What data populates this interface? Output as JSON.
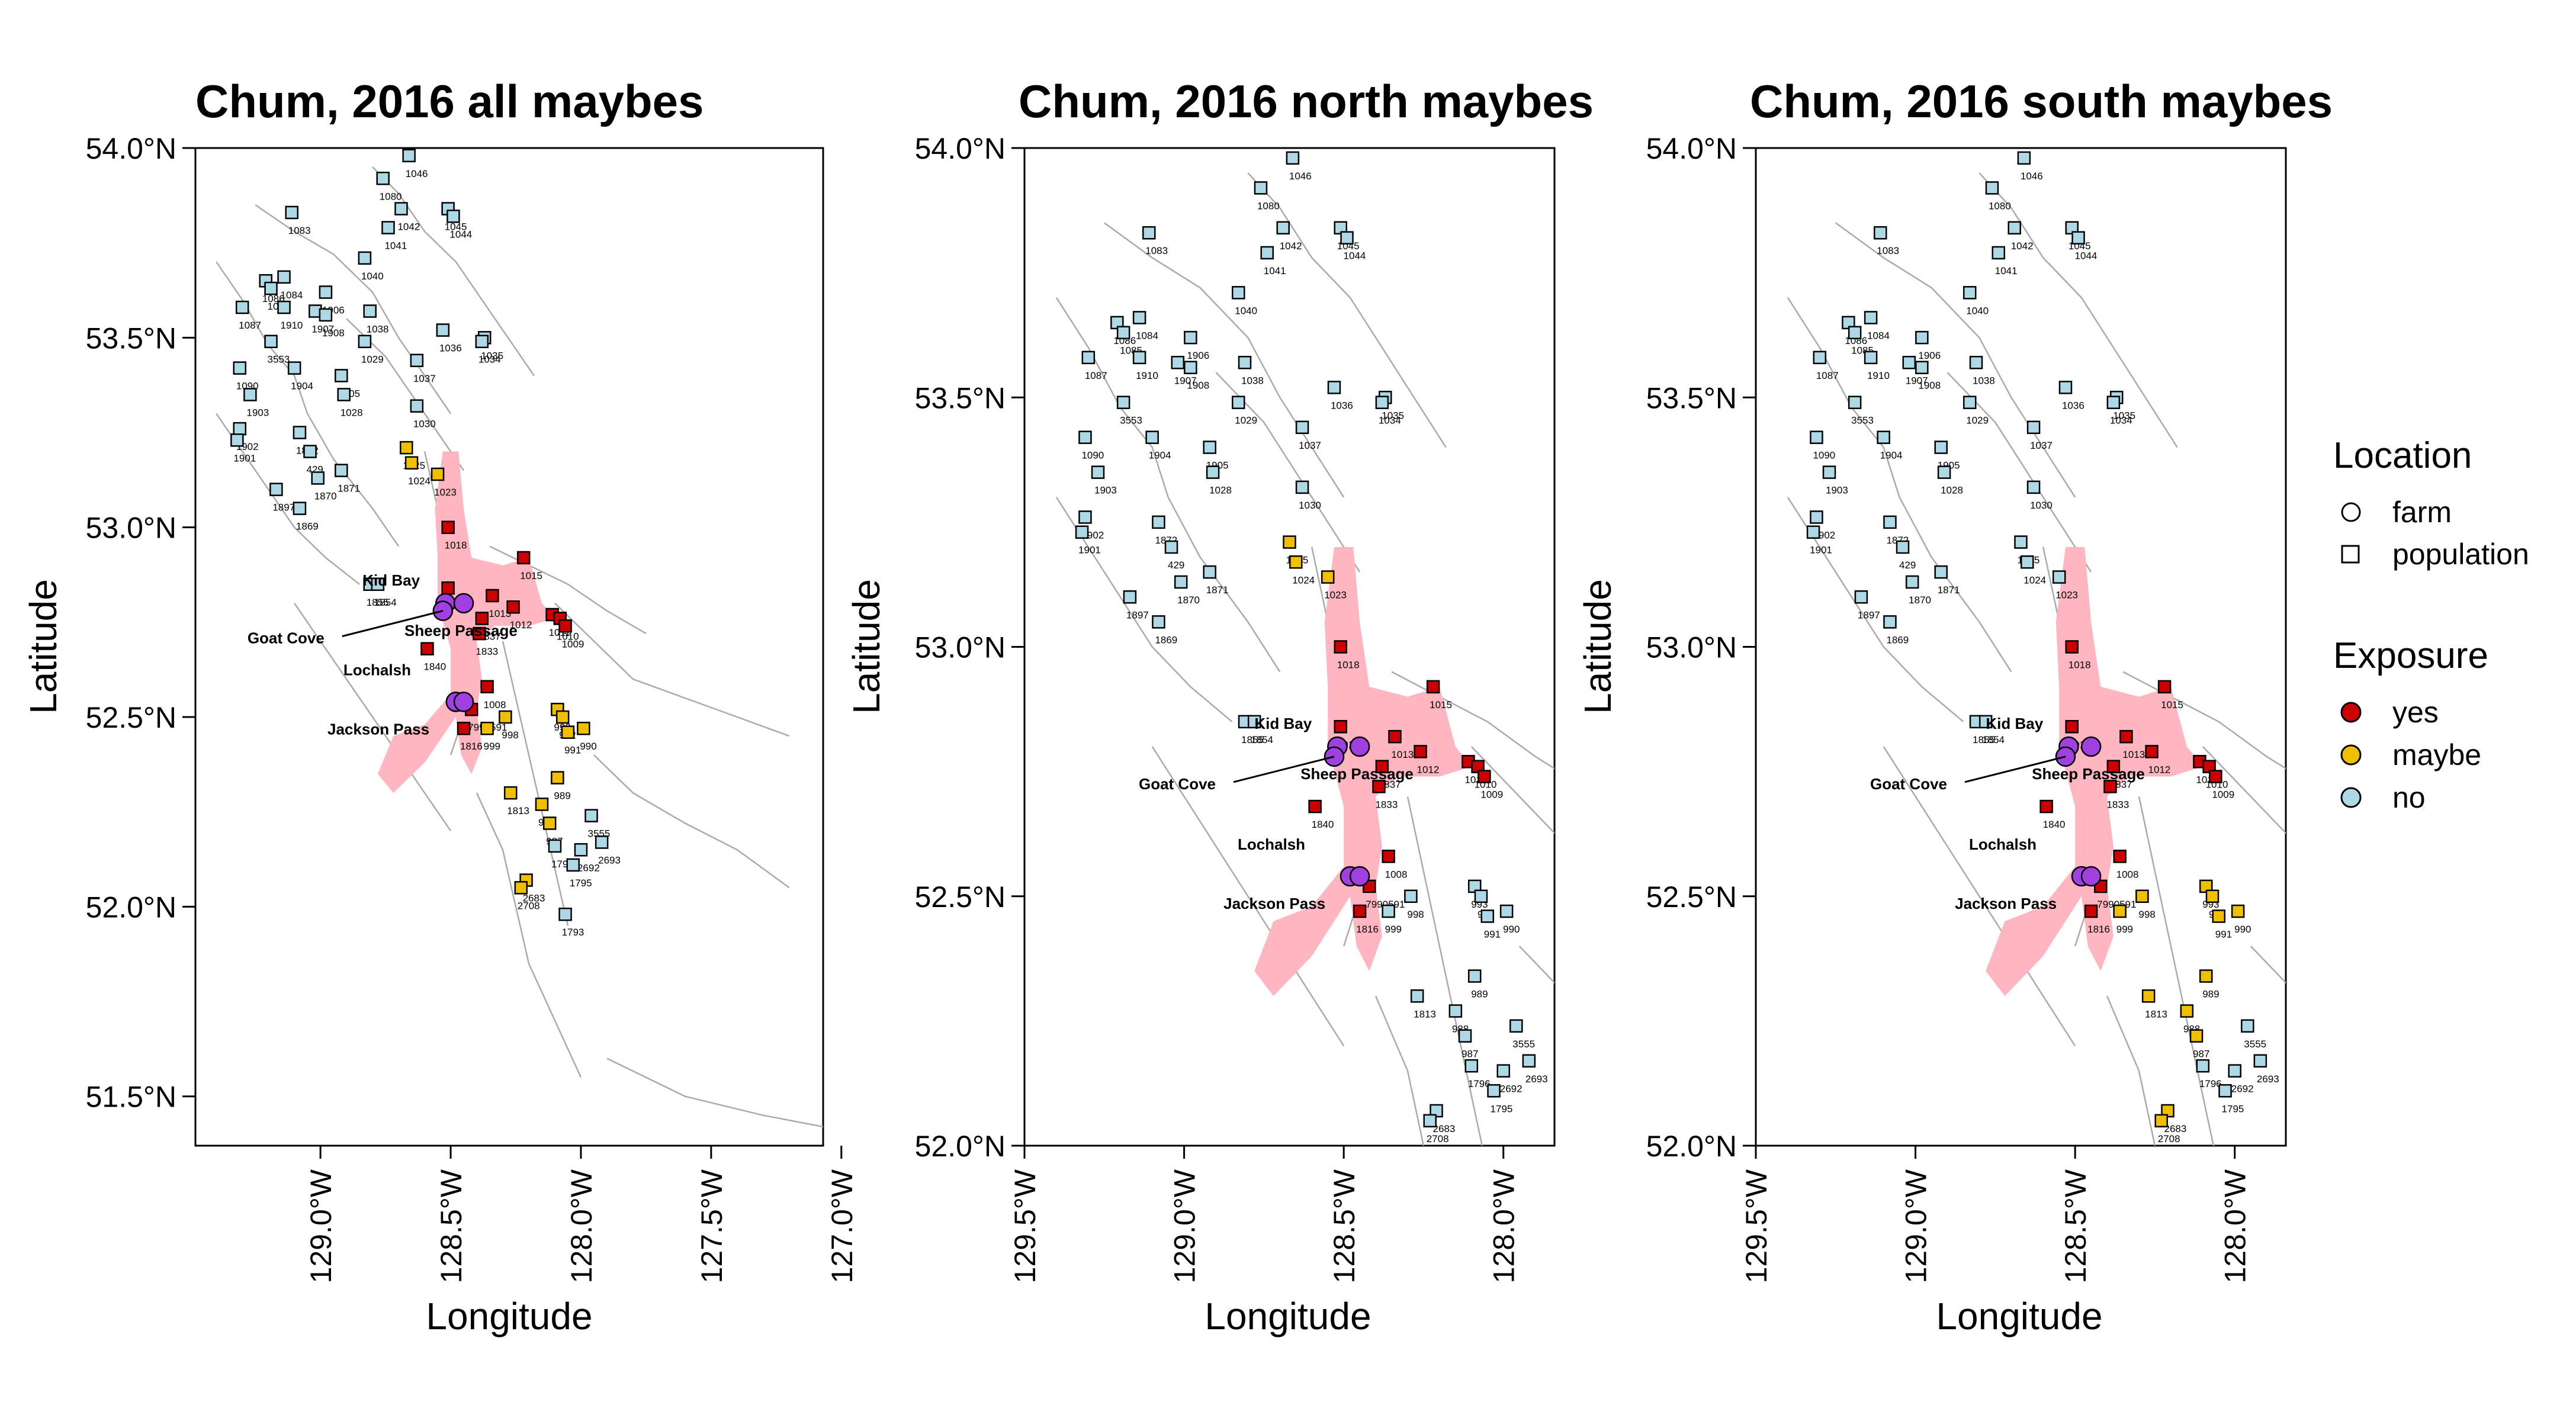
{
  "axis_labels": {
    "x": "Longitude",
    "y": "Latitude"
  },
  "colors": {
    "yes": "#cc0000",
    "maybe": "#f0c000",
    "no": "#add8e6",
    "farm": "#a040e0",
    "coast": "#aaaaaa",
    "route": "#ffb6c1"
  },
  "legend": {
    "location_title": "Location",
    "location_items": [
      {
        "label": "farm",
        "shape": "circle"
      },
      {
        "label": "population",
        "shape": "square"
      }
    ],
    "exposure_title": "Exposure",
    "exposure_items": [
      {
        "label": "yes",
        "key": "yes"
      },
      {
        "label": "maybe",
        "key": "maybe"
      },
      {
        "label": "no",
        "key": "no"
      }
    ]
  },
  "farm_labels": [
    "Kid Bay",
    "Goat Cove",
    "Sheep Passage",
    "Lochalsh",
    "Jackson Pass"
  ],
  "panels": [
    {
      "title": "Chum, 2016 all maybes",
      "lat_ticks": [
        "51.5°N",
        "52.0°N",
        "52.5°N",
        "53.0°N",
        "53.5°N",
        "54.0°N"
      ],
      "lon_ticks": [
        "129.0°W",
        "128.5°W",
        "128.0°W",
        "127.5°W",
        "127.0°W"
      ]
    },
    {
      "title": "Chum, 2016 north maybes",
      "lat_ticks": [
        "52.0°N",
        "52.5°N",
        "53.0°N",
        "53.5°N",
        "54.0°N"
      ],
      "lon_ticks": [
        "129.5°W",
        "129.0°W",
        "128.5°W",
        "128.0°W"
      ]
    },
    {
      "title": "Chum, 2016 south maybes",
      "lat_ticks": [
        "52.0°N",
        "52.5°N",
        "53.0°N",
        "53.5°N",
        "54.0°N"
      ],
      "lon_ticks": [
        "129.5°W",
        "129.0°W",
        "128.5°W",
        "128.0°W"
      ]
    }
  ],
  "farms": [
    {
      "name": "Kid Bay",
      "lon": -128.52,
      "lat": 52.8
    },
    {
      "name": "Goat Cove",
      "lon": -128.53,
      "lat": 52.78
    },
    {
      "name": "Sheep Passage",
      "lon": -128.45,
      "lat": 52.8
    },
    {
      "name": "Lochalsh",
      "lon": -128.48,
      "lat": 52.54
    },
    {
      "name": "Jackson Pass",
      "lon": -128.45,
      "lat": 52.54
    }
  ],
  "populations": [
    {
      "id": "1046",
      "lon": -128.66,
      "lat": 53.98,
      "north": "no",
      "south": "no",
      "all": "no"
    },
    {
      "id": "1080",
      "lon": -128.76,
      "lat": 53.92,
      "north": "no",
      "south": "no",
      "all": "no"
    },
    {
      "id": "1045",
      "lon": -128.51,
      "lat": 53.84,
      "north": "no",
      "south": "no",
      "all": "no"
    },
    {
      "id": "1044",
      "lon": -128.49,
      "lat": 53.82,
      "north": "no",
      "south": "no",
      "all": "no"
    },
    {
      "id": "1042",
      "lon": -128.69,
      "lat": 53.84,
      "north": "no",
      "south": "no",
      "all": "no"
    },
    {
      "id": "1083",
      "lon": -129.11,
      "lat": 53.83,
      "north": "no",
      "south": "no",
      "all": "no"
    },
    {
      "id": "1041",
      "lon": -128.74,
      "lat": 53.79,
      "north": "no",
      "south": "no",
      "all": "no"
    },
    {
      "id": "1906",
      "lon": -128.98,
      "lat": 53.62,
      "north": "no",
      "south": "no",
      "all": "no"
    },
    {
      "id": "1040",
      "lon": -128.83,
      "lat": 53.71,
      "north": "no",
      "south": "no",
      "all": "no"
    },
    {
      "id": "1086",
      "lon": -129.21,
      "lat": 53.65,
      "north": "no",
      "south": "no",
      "all": "no"
    },
    {
      "id": "1084",
      "lon": -129.14,
      "lat": 53.66,
      "north": "no",
      "south": "no",
      "all": "no"
    },
    {
      "id": "1085",
      "lon": -129.19,
      "lat": 53.63,
      "north": "no",
      "south": "no",
      "all": "no"
    },
    {
      "id": "1907",
      "lon": -129.02,
      "lat": 53.57,
      "north": "no",
      "south": "no",
      "all": "no"
    },
    {
      "id": "1087",
      "lon": -129.3,
      "lat": 53.58,
      "north": "no",
      "south": "no",
      "all": "no"
    },
    {
      "id": "1910",
      "lon": -129.14,
      "lat": 53.58,
      "north": "no",
      "south": "no",
      "all": "no"
    },
    {
      "id": "1908",
      "lon": -128.98,
      "lat": 53.56,
      "north": "no",
      "south": "no",
      "all": "no"
    },
    {
      "id": "1038",
      "lon": -128.81,
      "lat": 53.57,
      "north": "no",
      "south": "no",
      "all": "no"
    },
    {
      "id": "1029",
      "lon": -128.83,
      "lat": 53.49,
      "north": "no",
      "south": "no",
      "all": "no"
    },
    {
      "id": "1036",
      "lon": -128.53,
      "lat": 53.52,
      "north": "no",
      "south": "no",
      "all": "no"
    },
    {
      "id": "1035",
      "lon": -128.37,
      "lat": 53.5,
      "north": "no",
      "south": "no",
      "all": "no"
    },
    {
      "id": "1034",
      "lon": -128.38,
      "lat": 53.49,
      "north": "no",
      "south": "no",
      "all": "no"
    },
    {
      "id": "1037",
      "lon": -128.63,
      "lat": 53.44,
      "north": "no",
      "south": "no",
      "all": "no"
    },
    {
      "id": "3553",
      "lon": -129.19,
      "lat": 53.49,
      "north": "no",
      "south": "no",
      "all": "no"
    },
    {
      "id": "1090",
      "lon": -129.31,
      "lat": 53.42,
      "north": "no",
      "south": "no",
      "all": "no"
    },
    {
      "id": "1904",
      "lon": -129.1,
      "lat": 53.42,
      "north": "no",
      "south": "no",
      "all": "no"
    },
    {
      "id": "1905",
      "lon": -128.92,
      "lat": 53.4,
      "north": "no",
      "south": "no",
      "all": "no"
    },
    {
      "id": "1903",
      "lon": -129.27,
      "lat": 53.35,
      "north": "no",
      "south": "no",
      "all": "no"
    },
    {
      "id": "1028",
      "lon": -128.91,
      "lat": 53.35,
      "north": "no",
      "south": "no",
      "all": "no"
    },
    {
      "id": "1030",
      "lon": -128.63,
      "lat": 53.32,
      "north": "no",
      "south": "no",
      "all": "no"
    },
    {
      "id": "1902",
      "lon": -129.31,
      "lat": 53.26,
      "north": "no",
      "south": "no",
      "all": "no"
    },
    {
      "id": "1901",
      "lon": -129.32,
      "lat": 53.23,
      "north": "no",
      "south": "no",
      "all": "no"
    },
    {
      "id": "1872",
      "lon": -129.08,
      "lat": 53.25,
      "north": "no",
      "south": "no",
      "all": "no"
    },
    {
      "id": "429",
      "lon": -129.04,
      "lat": 53.2,
      "north": "no",
      "south": "no",
      "all": "no"
    },
    {
      "id": "1871",
      "lon": -128.92,
      "lat": 53.15,
      "north": "no",
      "south": "no",
      "all": "no"
    },
    {
      "id": "1870",
      "lon": -129.01,
      "lat": 53.13,
      "north": "no",
      "south": "no",
      "all": "no"
    },
    {
      "id": "1897",
      "lon": -129.17,
      "lat": 53.1,
      "north": "no",
      "south": "no",
      "all": "no"
    },
    {
      "id": "1869",
      "lon": -129.08,
      "lat": 53.05,
      "north": "no",
      "south": "no",
      "all": "no"
    },
    {
      "id": "1855",
      "lon": -128.81,
      "lat": 52.85,
      "north": "no",
      "south": "no",
      "all": "no"
    },
    {
      "id": "1854",
      "lon": -128.78,
      "lat": 52.85,
      "north": "no",
      "south": "no",
      "all": "no"
    },
    {
      "id": "1025",
      "lon": -128.67,
      "lat": 53.21,
      "north": "maybe",
      "south": "no",
      "all": "maybe"
    },
    {
      "id": "1024",
      "lon": -128.65,
      "lat": 53.17,
      "north": "maybe",
      "south": "no",
      "all": "maybe"
    },
    {
      "id": "1023",
      "lon": -128.55,
      "lat": 53.14,
      "north": "maybe",
      "south": "no",
      "all": "maybe"
    },
    {
      "id": "1018",
      "lon": -128.51,
      "lat": 53.0,
      "north": "yes",
      "south": "yes",
      "all": "yes"
    },
    {
      "id": "1015",
      "lon": -128.22,
      "lat": 52.92,
      "north": "yes",
      "south": "yes",
      "all": "yes"
    },
    {
      "id": "1017",
      "lon": -128.51,
      "lat": 52.84,
      "north": "yes",
      "south": "yes",
      "all": "yes"
    },
    {
      "id": "1013",
      "lon": -128.34,
      "lat": 52.82,
      "north": "yes",
      "south": "yes",
      "all": "yes"
    },
    {
      "id": "1012",
      "lon": -128.26,
      "lat": 52.79,
      "north": "yes",
      "south": "yes",
      "all": "yes"
    },
    {
      "id": "1011",
      "lon": -128.11,
      "lat": 52.77,
      "north": "yes",
      "south": "yes",
      "all": "yes"
    },
    {
      "id": "1010",
      "lon": -128.08,
      "lat": 52.76,
      "north": "yes",
      "south": "yes",
      "all": "yes"
    },
    {
      "id": "1009",
      "lon": -128.06,
      "lat": 52.74,
      "north": "yes",
      "south": "yes",
      "all": "yes"
    },
    {
      "id": "1837",
      "lon": -128.38,
      "lat": 52.76,
      "north": "yes",
      "south": "yes",
      "all": "yes"
    },
    {
      "id": "1833",
      "lon": -128.39,
      "lat": 52.72,
      "north": "yes",
      "south": "yes",
      "all": "yes"
    },
    {
      "id": "1840",
      "lon": -128.59,
      "lat": 52.68,
      "north": "yes",
      "south": "yes",
      "all": "yes"
    },
    {
      "id": "1008",
      "lon": -128.36,
      "lat": 52.58,
      "north": "yes",
      "south": "yes",
      "all": "yes"
    },
    {
      "id": "7990591",
      "lon": -128.42,
      "lat": 52.52,
      "north": "yes",
      "south": "yes",
      "all": "yes"
    },
    {
      "id": "1816",
      "lon": -128.45,
      "lat": 52.47,
      "north": "yes",
      "south": "yes",
      "all": "yes"
    },
    {
      "id": "999",
      "lon": -128.36,
      "lat": 52.47,
      "north": "no",
      "south": "maybe",
      "all": "maybe"
    },
    {
      "id": "998",
      "lon": -128.29,
      "lat": 52.5,
      "north": "no",
      "south": "maybe",
      "all": "maybe"
    },
    {
      "id": "993",
      "lon": -128.09,
      "lat": 52.52,
      "north": "no",
      "south": "maybe",
      "all": "maybe"
    },
    {
      "id": "992",
      "lon": -128.07,
      "lat": 52.5,
      "north": "no",
      "south": "maybe",
      "all": "maybe"
    },
    {
      "id": "991",
      "lon": -128.05,
      "lat": 52.46,
      "north": "no",
      "south": "maybe",
      "all": "maybe"
    },
    {
      "id": "990",
      "lon": -127.99,
      "lat": 52.47,
      "north": "no",
      "south": "maybe",
      "all": "maybe"
    },
    {
      "id": "989",
      "lon": -128.09,
      "lat": 52.34,
      "north": "no",
      "south": "maybe",
      "all": "maybe"
    },
    {
      "id": "988",
      "lon": -128.15,
      "lat": 52.27,
      "north": "no",
      "south": "maybe",
      "all": "maybe"
    },
    {
      "id": "1813",
      "lon": -128.27,
      "lat": 52.3,
      "north": "no",
      "south": "maybe",
      "all": "maybe"
    },
    {
      "id": "987",
      "lon": -128.12,
      "lat": 52.22,
      "north": "no",
      "south": "maybe",
      "all": "maybe"
    },
    {
      "id": "1796",
      "lon": -128.1,
      "lat": 52.16,
      "north": "no",
      "south": "no",
      "all": "no"
    },
    {
      "id": "3555",
      "lon": -127.96,
      "lat": 52.24,
      "north": "no",
      "south": "no",
      "all": "no"
    },
    {
      "id": "2692",
      "lon": -128.0,
      "lat": 52.15,
      "north": "no",
      "south": "no",
      "all": "no"
    },
    {
      "id": "2693",
      "lon": -127.92,
      "lat": 52.17,
      "north": "no",
      "south": "no",
      "all": "no"
    },
    {
      "id": "1795",
      "lon": -128.03,
      "lat": 52.11,
      "north": "no",
      "south": "no",
      "all": "no"
    },
    {
      "id": "2683",
      "lon": -128.21,
      "lat": 52.07,
      "north": "no",
      "south": "maybe",
      "all": "maybe"
    },
    {
      "id": "2708",
      "lon": -128.23,
      "lat": 52.05,
      "north": "no",
      "south": "maybe",
      "all": "maybe"
    },
    {
      "id": "1793",
      "lon": -128.06,
      "lat": 51.98,
      "north": "no",
      "south": "no",
      "all": "no"
    }
  ]
}
